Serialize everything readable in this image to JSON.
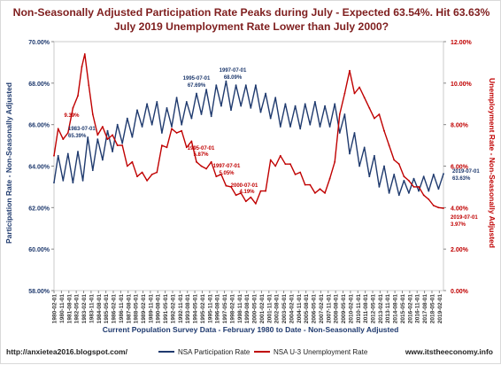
{
  "chart_data": {
    "type": "line",
    "title": "Non-Seasonally Adjusted Participation Rate Peaks during July - Expected 63.54%. Hit 63.63%",
    "subtitle": "July 2019 Unemployment  Rate Lower than July 2000?",
    "xlabel": "Current Population Survey Data - February 1980 to Date - Non-Seasonally Adjusted",
    "ylabel_left": "Participation Rate - Non-Seasonally Adjusted",
    "ylabel_right": "Unemployment Rate - Non-Seasonally Adjusted",
    "ylim_left": [
      58,
      70
    ],
    "ylim_right": [
      0,
      12
    ],
    "left_ticks": [
      "58.00%",
      "60.00%",
      "62.00%",
      "64.00%",
      "66.00%",
      "68.00%",
      "70.00%"
    ],
    "right_ticks": [
      "0.00%",
      "2.00%",
      "4.00%",
      "6.00%",
      "8.00%",
      "10.00%",
      "12.00%"
    ],
    "x_ticks": [
      "1980-02-01",
      "1980-11-01",
      "1981-08-01",
      "1982-05-01",
      "1983-02-01",
      "1983-11-01",
      "1984-08-01",
      "1985-05-01",
      "1986-02-01",
      "1986-11-01",
      "1987-08-01",
      "1988-05-01",
      "1989-02-01",
      "1989-11-01",
      "1990-08-01",
      "1991-05-01",
      "1992-02-01",
      "1992-11-01",
      "1993-08-01",
      "1994-05-01",
      "1995-02-01",
      "1995-11-01",
      "1996-08-01",
      "1997-05-01",
      "1998-02-01",
      "1998-11-01",
      "1999-08-01",
      "2000-05-01",
      "2001-02-01",
      "2001-11-01",
      "2002-08-01",
      "2003-05-01",
      "2004-02-01",
      "2004-11-01",
      "2005-08-01",
      "2006-05-01",
      "2007-02-01",
      "2007-11-01",
      "2008-08-01",
      "2009-05-01",
      "2010-02-01",
      "2010-11-01",
      "2011-08-01",
      "2012-05-01",
      "2013-02-01",
      "2013-11-01",
      "2014-08-01",
      "2015-05-01",
      "2016-02-01",
      "2016-11-01",
      "2017-08-01",
      "2018-05-01",
      "2019-02-01"
    ],
    "grid": false,
    "legend": "bottom",
    "series": [
      {
        "name": "NSA Participation Rate",
        "axis": "left",
        "color": "#1f3a6e",
        "x": [
          1980.08,
          1980.5,
          1981.0,
          1981.5,
          1982.0,
          1982.5,
          1983.0,
          1983.5,
          1984.0,
          1984.5,
          1985.0,
          1985.5,
          1986.0,
          1986.5,
          1987.0,
          1987.5,
          1988.0,
          1988.5,
          1989.0,
          1989.5,
          1990.0,
          1990.5,
          1991.0,
          1991.5,
          1992.0,
          1992.5,
          1993.0,
          1993.5,
          1994.0,
          1994.5,
          1995.0,
          1995.5,
          1996.0,
          1996.5,
          1997.0,
          1997.5,
          1998.0,
          1998.5,
          1999.0,
          1999.5,
          2000.0,
          2000.5,
          2001.0,
          2001.5,
          2002.0,
          2002.5,
          2003.0,
          2003.5,
          2004.0,
          2004.5,
          2005.0,
          2005.5,
          2006.0,
          2006.5,
          2007.0,
          2007.5,
          2008.0,
          2008.5,
          2009.0,
          2009.5,
          2010.0,
          2010.5,
          2011.0,
          2011.5,
          2012.0,
          2012.5,
          2013.0,
          2013.5,
          2014.0,
          2014.5,
          2015.0,
          2015.5,
          2016.0,
          2016.5,
          2017.0,
          2017.5,
          2018.0,
          2018.5,
          2019.0,
          2019.5
        ],
        "values": [
          63.2,
          64.5,
          63.3,
          64.6,
          63.2,
          64.7,
          63.3,
          65.39,
          63.8,
          65.3,
          64.3,
          65.7,
          64.7,
          66.0,
          65.1,
          66.3,
          65.4,
          66.7,
          65.9,
          67.0,
          66.0,
          67.1,
          65.6,
          66.8,
          65.9,
          67.3,
          66.0,
          67.1,
          66.3,
          67.5,
          66.5,
          67.69,
          66.4,
          67.9,
          66.9,
          68.09,
          66.7,
          67.9,
          66.9,
          67.9,
          66.8,
          67.9,
          66.6,
          67.5,
          66.3,
          67.3,
          65.9,
          67.0,
          65.9,
          66.9,
          65.8,
          67.0,
          66.0,
          67.1,
          65.9,
          66.9,
          65.9,
          67.0,
          65.6,
          66.5,
          64.6,
          65.6,
          64.0,
          64.9,
          63.5,
          64.5,
          63.0,
          64.0,
          62.7,
          63.6,
          62.6,
          63.3,
          62.7,
          63.4,
          62.8,
          63.5,
          62.8,
          63.6,
          62.9,
          63.63
        ]
      },
      {
        "name": "NSA U-3 Unemployment Rate",
        "axis": "right",
        "color": "#c00000",
        "x": [
          1980.08,
          1980.5,
          1981.0,
          1981.5,
          1982.0,
          1982.5,
          1982.9,
          1983.2,
          1983.6,
          1984.0,
          1984.5,
          1985.0,
          1985.5,
          1986.0,
          1986.5,
          1987.0,
          1987.5,
          1988.0,
          1988.5,
          1989.0,
          1989.5,
          1990.0,
          1990.5,
          1991.0,
          1991.5,
          1992.0,
          1992.5,
          1993.0,
          1993.5,
          1994.0,
          1994.5,
          1995.0,
          1995.5,
          1996.0,
          1996.5,
          1997.0,
          1997.5,
          1998.0,
          1998.5,
          1999.0,
          1999.5,
          2000.0,
          2000.5,
          2001.0,
          2001.5,
          2002.0,
          2002.5,
          2003.0,
          2003.5,
          2004.0,
          2004.5,
          2005.0,
          2005.5,
          2006.0,
          2006.5,
          2007.0,
          2007.5,
          2008.0,
          2008.5,
          2009.0,
          2009.5,
          2010.0,
          2010.5,
          2011.0,
          2011.5,
          2012.0,
          2012.5,
          2013.0,
          2013.5,
          2014.0,
          2014.5,
          2015.0,
          2015.5,
          2016.0,
          2016.5,
          2017.0,
          2017.5,
          2018.0,
          2018.5,
          2019.0,
          2019.5
        ],
        "values": [
          6.5,
          7.8,
          7.3,
          7.6,
          8.8,
          9.39,
          10.8,
          11.4,
          9.9,
          8.5,
          7.5,
          7.9,
          7.3,
          7.5,
          7.0,
          7.0,
          6.0,
          6.2,
          5.5,
          5.7,
          5.3,
          5.6,
          5.7,
          7.0,
          6.9,
          7.8,
          7.6,
          7.7,
          6.9,
          7.2,
          6.2,
          6.0,
          5.87,
          6.2,
          5.5,
          5.6,
          5.05,
          5.0,
          4.6,
          4.7,
          4.3,
          4.5,
          4.19,
          4.8,
          4.8,
          6.3,
          6.0,
          6.5,
          6.1,
          6.1,
          5.6,
          5.7,
          5.1,
          5.1,
          4.7,
          4.9,
          4.7,
          5.4,
          6.2,
          8.5,
          9.5,
          10.6,
          9.5,
          9.8,
          9.3,
          8.8,
          8.3,
          8.5,
          7.7,
          7.0,
          6.3,
          6.1,
          5.5,
          5.3,
          5.0,
          5.0,
          4.6,
          4.4,
          4.1,
          4.0,
          3.97
        ]
      }
    ],
    "annotations": [
      {
        "date": "1983-07-01",
        "value": "65.39%",
        "series": "NSA Participation Rate"
      },
      {
        "date": "1995-07-01",
        "value": "67.69%",
        "series": "NSA Participation Rate"
      },
      {
        "date": "1997-07-01",
        "value": "68.09%",
        "series": "NSA Participation Rate"
      },
      {
        "date": "2019-07-01",
        "value": "63.63%",
        "series": "NSA Participation Rate"
      },
      {
        "date": "",
        "value": "9.39%",
        "series": "NSA U-3 Unemployment Rate"
      },
      {
        "date": "1995-07-01",
        "value": "5.87%",
        "series": "NSA U-3 Unemployment Rate"
      },
      {
        "date": "1997-07-01",
        "value": "5.05%",
        "series": "NSA U-3 Unemployment Rate"
      },
      {
        "date": "2000-07-01",
        "value": "4.19%",
        "series": "NSA U-3 Unemployment Rate"
      },
      {
        "date": "2019-07-01",
        "value": "3.97%",
        "series": "NSA U-3 Unemployment Rate"
      }
    ]
  },
  "footer": {
    "left": "http://anxietea2016.blogspot.com/",
    "right": "www.itstheeconomy.info"
  }
}
